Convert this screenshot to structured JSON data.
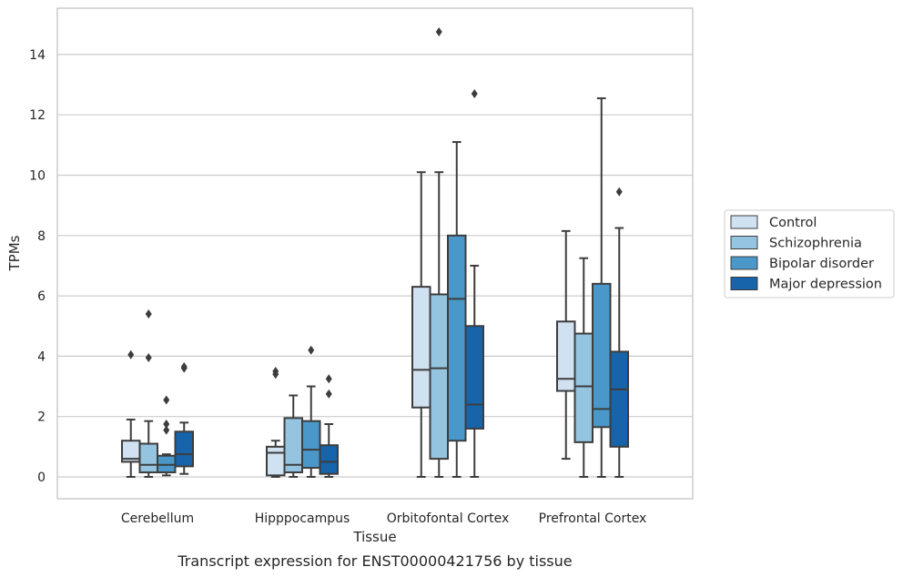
{
  "chart_data": {
    "type": "boxplot",
    "xlabel": "Tissue",
    "ylabel": "TPMs",
    "caption": "Transcript expression for ENST00000421756 by tissue",
    "ylim": [
      -0.7,
      15.5
    ],
    "yticks": [
      0,
      2,
      4,
      6,
      8,
      10,
      12,
      14
    ],
    "grid": "horizontal",
    "legend_placement": "right",
    "categories": [
      "Cerebellum",
      "Hipppocampus",
      "Orbitofontal Cortex",
      "Prefrontal Cortex"
    ],
    "series": [
      {
        "name": "Control",
        "color": "#d0e1f2",
        "boxes": [
          {
            "whislo": 0.0,
            "q1": 0.5,
            "med": 0.6,
            "q3": 1.2,
            "whishi": 1.9,
            "fliers": [
              4.05
            ]
          },
          {
            "whislo": 0.0,
            "q1": 0.05,
            "med": 0.8,
            "q3": 1.0,
            "whishi": 1.2,
            "fliers": [
              3.4,
              3.5
            ]
          },
          {
            "whislo": 0.0,
            "q1": 2.3,
            "med": 3.55,
            "q3": 6.3,
            "whishi": 10.1,
            "fliers": []
          },
          {
            "whislo": 0.6,
            "q1": 2.85,
            "med": 3.25,
            "q3": 5.15,
            "whishi": 8.15,
            "fliers": []
          }
        ]
      },
      {
        "name": "Schizophrenia",
        "color": "#94c4df",
        "boxes": [
          {
            "whislo": 0.0,
            "q1": 0.15,
            "med": 0.4,
            "q3": 1.1,
            "whishi": 1.85,
            "fliers": [
              3.95,
              5.4
            ]
          },
          {
            "whislo": 0.0,
            "q1": 0.15,
            "med": 0.4,
            "q3": 1.95,
            "whishi": 2.7,
            "fliers": []
          },
          {
            "whislo": 0.0,
            "q1": 0.6,
            "med": 3.6,
            "q3": 6.05,
            "whishi": 10.1,
            "fliers": [
              14.75
            ]
          },
          {
            "whislo": 0.0,
            "q1": 1.15,
            "med": 3.0,
            "q3": 4.75,
            "whishi": 7.25,
            "fliers": []
          }
        ]
      },
      {
        "name": "Bipolar disorder",
        "color": "#4a98c9",
        "boxes": [
          {
            "whislo": 0.05,
            "q1": 0.15,
            "med": 0.4,
            "q3": 0.7,
            "whishi": 0.75,
            "fliers": [
              1.55,
              1.75,
              2.55
            ]
          },
          {
            "whislo": 0.0,
            "q1": 0.3,
            "med": 0.9,
            "q3": 1.85,
            "whishi": 3.0,
            "fliers": [
              4.2
            ]
          },
          {
            "whislo": 0.0,
            "q1": 1.2,
            "med": 5.9,
            "q3": 8.0,
            "whishi": 11.1,
            "fliers": []
          },
          {
            "whislo": 0.0,
            "q1": 1.65,
            "med": 2.25,
            "q3": 6.4,
            "whishi": 12.55,
            "fliers": []
          }
        ]
      },
      {
        "name": "Major depression",
        "color": "#1764ab",
        "boxes": [
          {
            "whislo": 0.1,
            "q1": 0.35,
            "med": 0.75,
            "q3": 1.5,
            "whishi": 1.8,
            "fliers": [
              3.6,
              3.65
            ]
          },
          {
            "whislo": 0.0,
            "q1": 0.1,
            "med": 0.5,
            "q3": 1.05,
            "whishi": 1.75,
            "fliers": [
              2.75,
              3.25
            ]
          },
          {
            "whislo": 0.0,
            "q1": 1.6,
            "med": 2.4,
            "q3": 5.0,
            "whishi": 7.0,
            "fliers": [
              12.7
            ]
          },
          {
            "whislo": 0.0,
            "q1": 1.0,
            "med": 2.9,
            "q3": 4.15,
            "whishi": 8.25,
            "fliers": [
              9.45
            ]
          }
        ]
      }
    ]
  }
}
